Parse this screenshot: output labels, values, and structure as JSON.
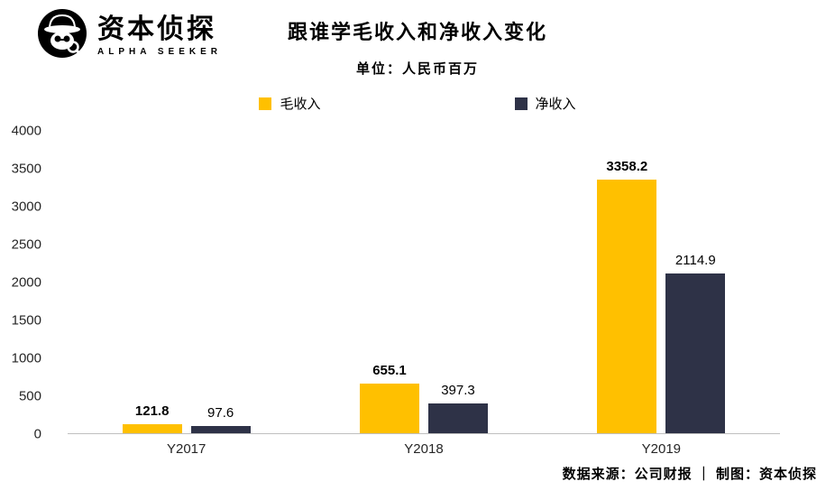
{
  "logo": {
    "title": "资本侦探",
    "subtitle": "ALPHA SEEKER"
  },
  "header": {
    "title": "跟谁学毛收入和净收入变化",
    "subtitle": "单位：人民币百万"
  },
  "footer": {
    "source": "数据来源：公司财报 ｜ 制图：资本侦探"
  },
  "colors": {
    "gross": "#FFC000",
    "net": "#2E3247",
    "axis_line": "#BFBFBF"
  },
  "chart_data": {
    "type": "bar",
    "title": "跟谁学毛收入和净收入变化",
    "subtitle_unit": "单位：人民币百万",
    "categories": [
      "Y2017",
      "Y2018",
      "Y2019"
    ],
    "series": [
      {
        "name": "毛收入",
        "color": "#FFC000",
        "values": [
          121.8,
          655.1,
          3358.2
        ],
        "label_bold": true
      },
      {
        "name": "净收入",
        "color": "#2E3247",
        "values": [
          97.6,
          397.3,
          2114.9
        ],
        "label_bold": false
      }
    ],
    "xlabel": "",
    "ylabel": "",
    "ylim": [
      0,
      4000
    ],
    "yticks": [
      0,
      500,
      1000,
      1500,
      2000,
      2500,
      3000,
      3500,
      4000
    ],
    "grid": false,
    "legend_position": "top"
  }
}
